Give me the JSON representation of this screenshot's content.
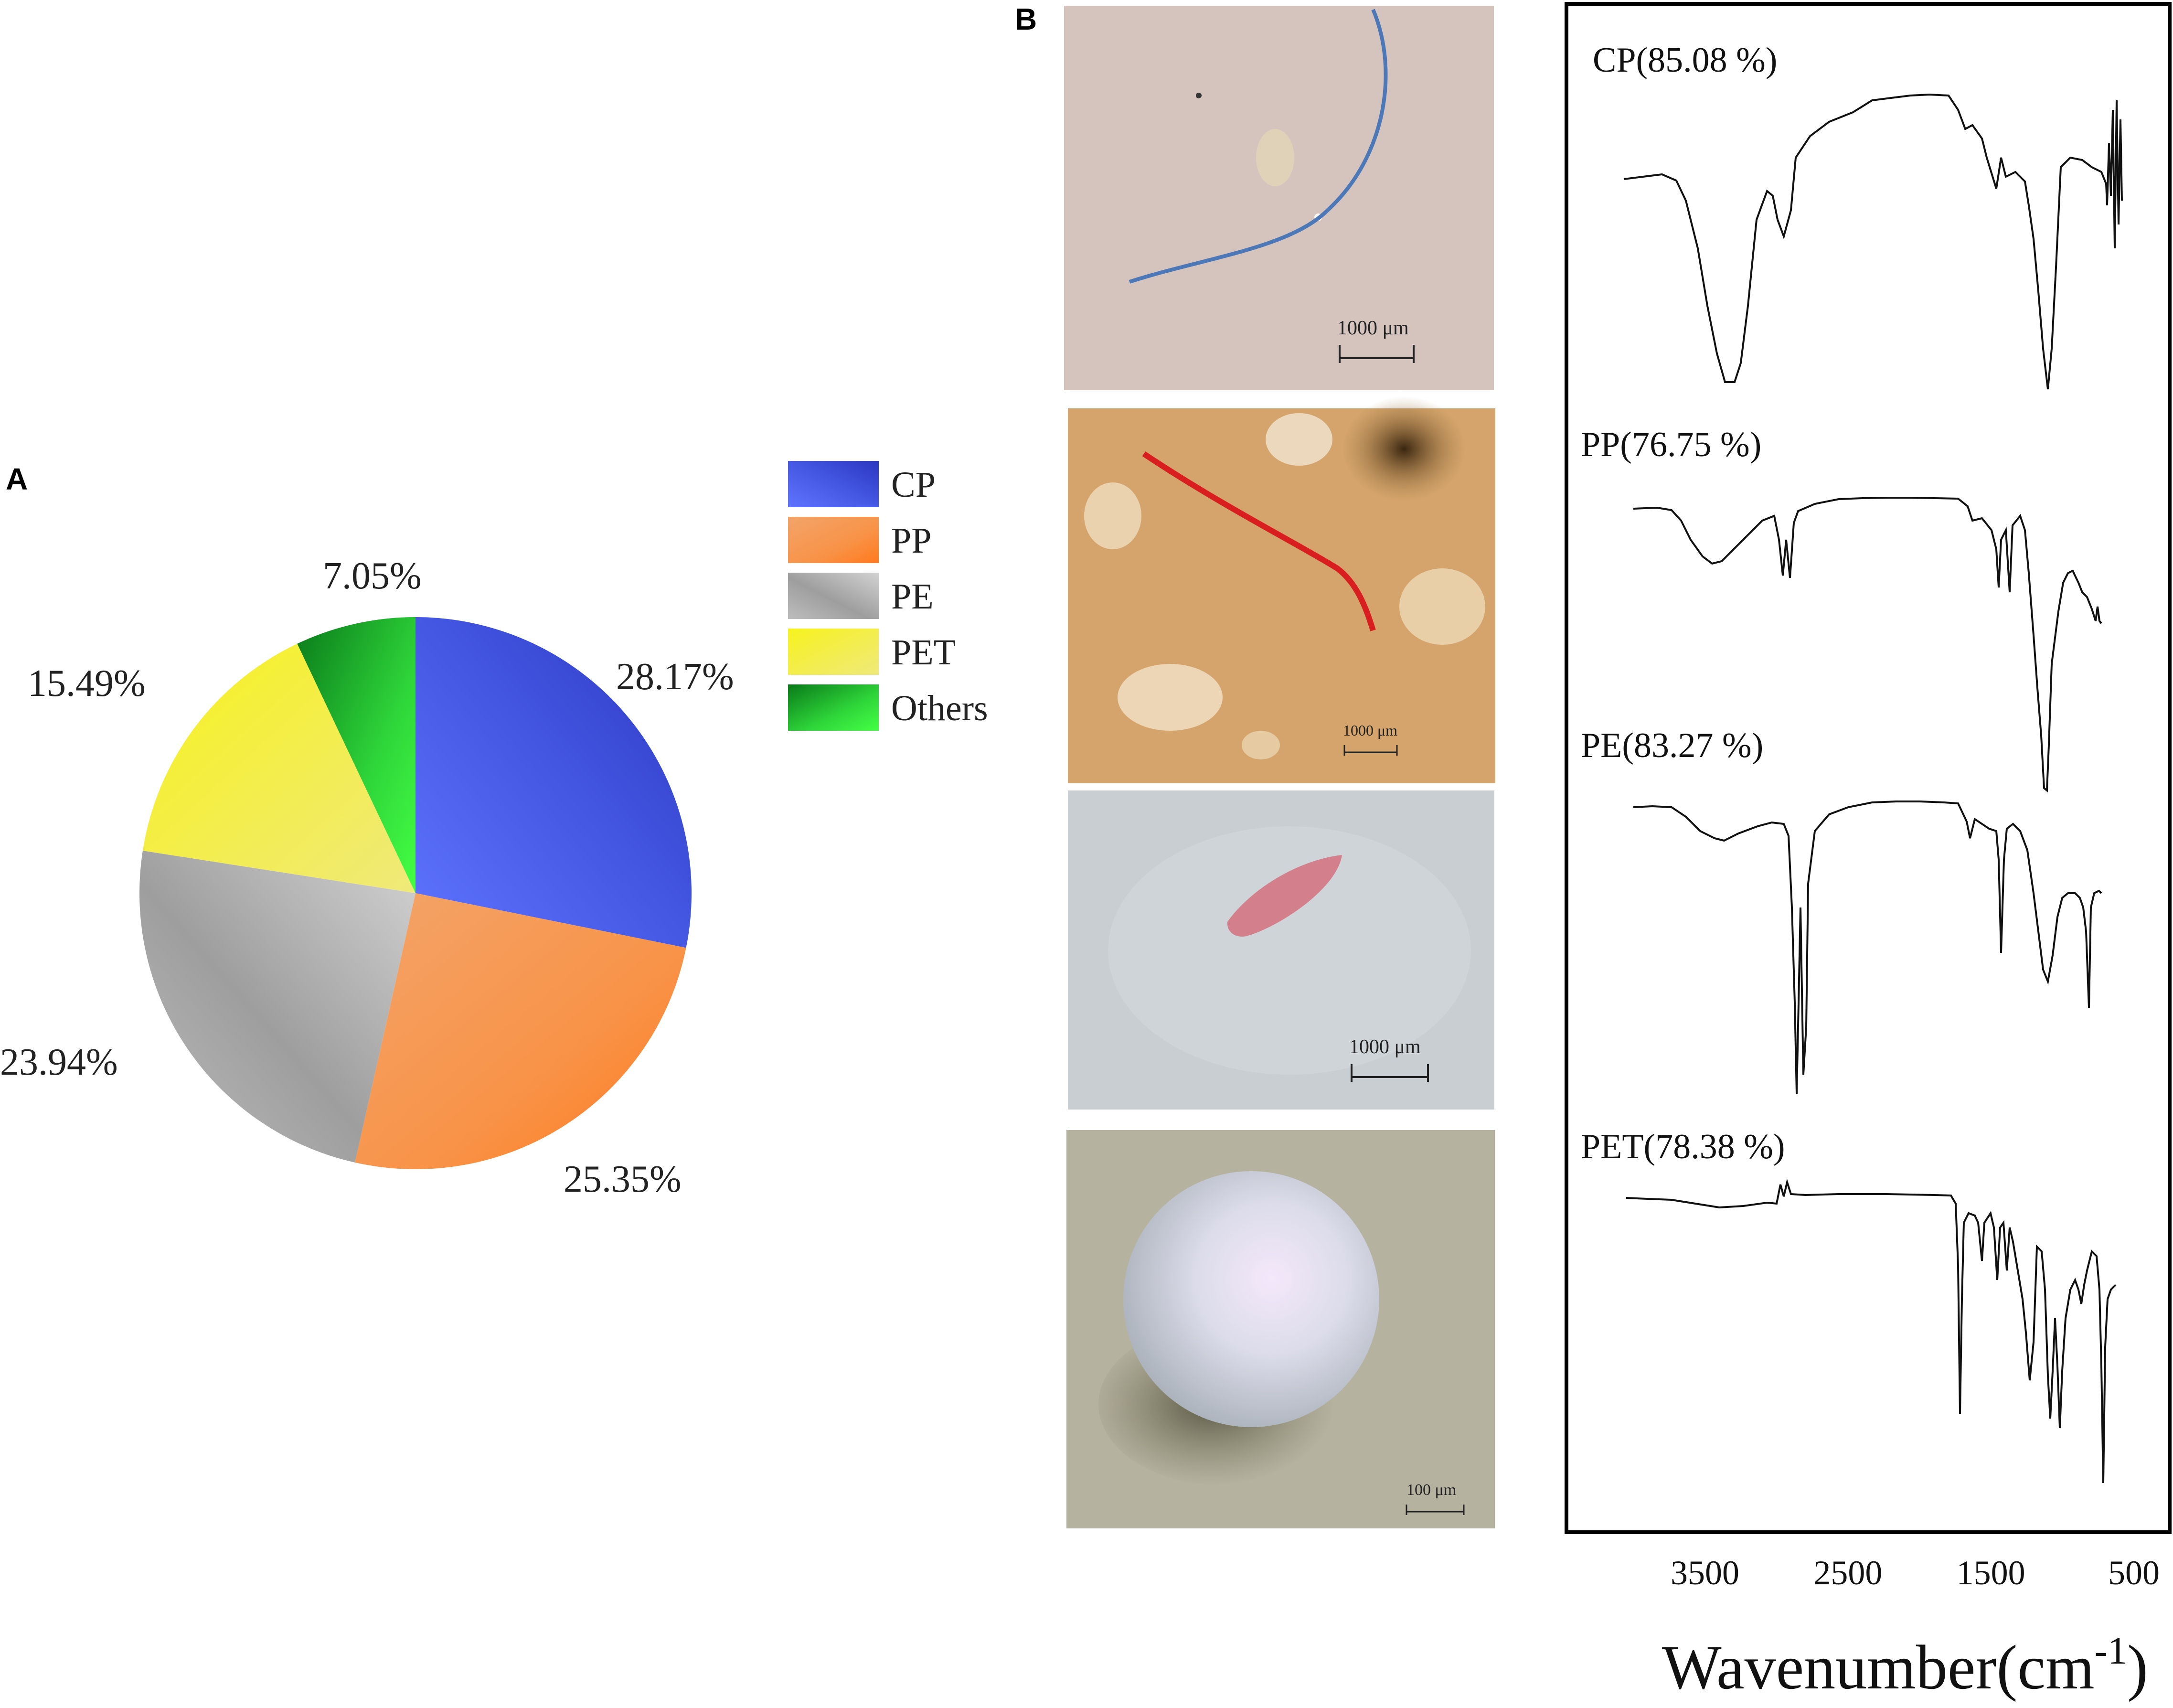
{
  "panel_labels": {
    "a": "A",
    "b": "B"
  },
  "colors": {
    "CP": "#5b6ff2",
    "PP": "#f5a060",
    "PE": "#bdbdbd",
    "PET": "#f0ee58",
    "Others": "#3be43b"
  },
  "chart_data": [
    {
      "type": "pie",
      "title": "",
      "slices": [
        {
          "name": "CP",
          "value": 28.17,
          "label": "28.17%"
        },
        {
          "name": "PP",
          "value": 25.35,
          "label": "25.35%"
        },
        {
          "name": "PE",
          "value": 23.94,
          "label": "23.94%"
        },
        {
          "name": "PET",
          "value": 15.49,
          "label": "15.49%"
        },
        {
          "name": "Others",
          "value": 7.05,
          "label": "7.05%"
        }
      ],
      "legend": {
        "position": "top-right",
        "entries": [
          "CP",
          "PP",
          "PE",
          "PET",
          "Others"
        ]
      }
    },
    {
      "type": "line",
      "title": "",
      "xlabel": "Wavenumber(cm",
      "xlabel_superscript": "-1",
      "xlabel_close": ")",
      "x_reversed": true,
      "xlim": [
        4000,
        500
      ],
      "x_ticks": [
        3500,
        2500,
        1500,
        500
      ],
      "grid": false,
      "series": [
        {
          "name": "CP(85.08 %)"
        },
        {
          "name": "PP(76.75 %)"
        },
        {
          "name": "PE(83.27 %)"
        },
        {
          "name": "PET(78.38 %)"
        }
      ]
    }
  ],
  "micrographs": [
    {
      "name": "CP",
      "scale_label": "1000 μm"
    },
    {
      "name": "PP",
      "scale_label": "1000 μm"
    },
    {
      "name": "PE",
      "scale_label": "1000 μm"
    },
    {
      "name": "PET",
      "scale_label": "100 μm"
    }
  ]
}
